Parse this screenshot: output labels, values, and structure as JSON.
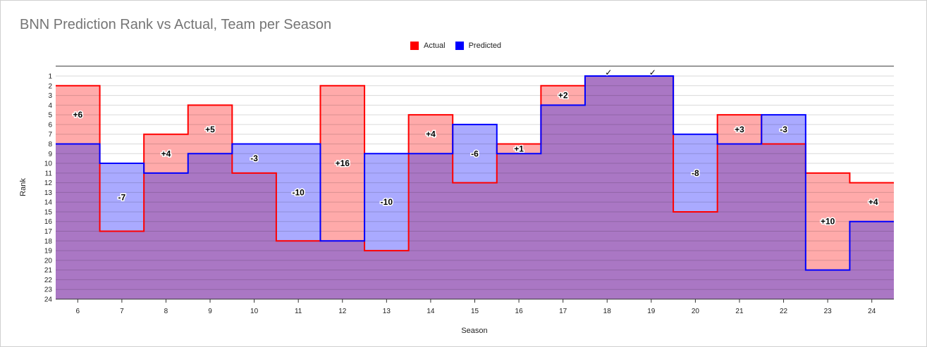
{
  "chart_data": {
    "type": "area",
    "title": "BNN Prediction Rank vs Actual, Team per Season",
    "xlabel": "Season",
    "ylabel": "Rank",
    "x": [
      "6",
      "7",
      "8",
      "9",
      "10",
      "11",
      "12",
      "13",
      "14",
      "15",
      "16",
      "17",
      "18",
      "19",
      "20",
      "21",
      "22",
      "23",
      "24"
    ],
    "ylim": [
      1,
      24
    ],
    "y_reversed": true,
    "y_ticks": [
      "1",
      "2",
      "3",
      "4",
      "5",
      "6",
      "7",
      "8",
      "9",
      "10",
      "11",
      "12",
      "13",
      "14",
      "15",
      "16",
      "17",
      "18",
      "19",
      "20",
      "21",
      "22",
      "23",
      "24"
    ],
    "series": [
      {
        "name": "Actual",
        "color": "#ff0000",
        "fill": "#ffaaaa",
        "values": [
          2,
          17,
          7,
          4,
          11,
          18,
          2,
          19,
          5,
          12,
          8,
          2,
          1,
          1,
          15,
          5,
          8,
          11,
          12
        ]
      },
      {
        "name": "Predicted",
        "color": "#0000ff",
        "fill": "#aaaaff",
        "values": [
          8,
          10,
          11,
          9,
          8,
          8,
          18,
          9,
          9,
          6,
          9,
          4,
          1,
          1,
          7,
          8,
          5,
          21,
          16
        ]
      }
    ],
    "overlap_color": "#aa77c4",
    "annotations": [
      "+6",
      "-7",
      "+4",
      "+5",
      "-3",
      "-10",
      "+16",
      "-10",
      "+4",
      "-6",
      "+1",
      "+2",
      "✓",
      "✓",
      "-8",
      "+3",
      "-3",
      "+10",
      "+4"
    ],
    "legend": "top-center"
  }
}
